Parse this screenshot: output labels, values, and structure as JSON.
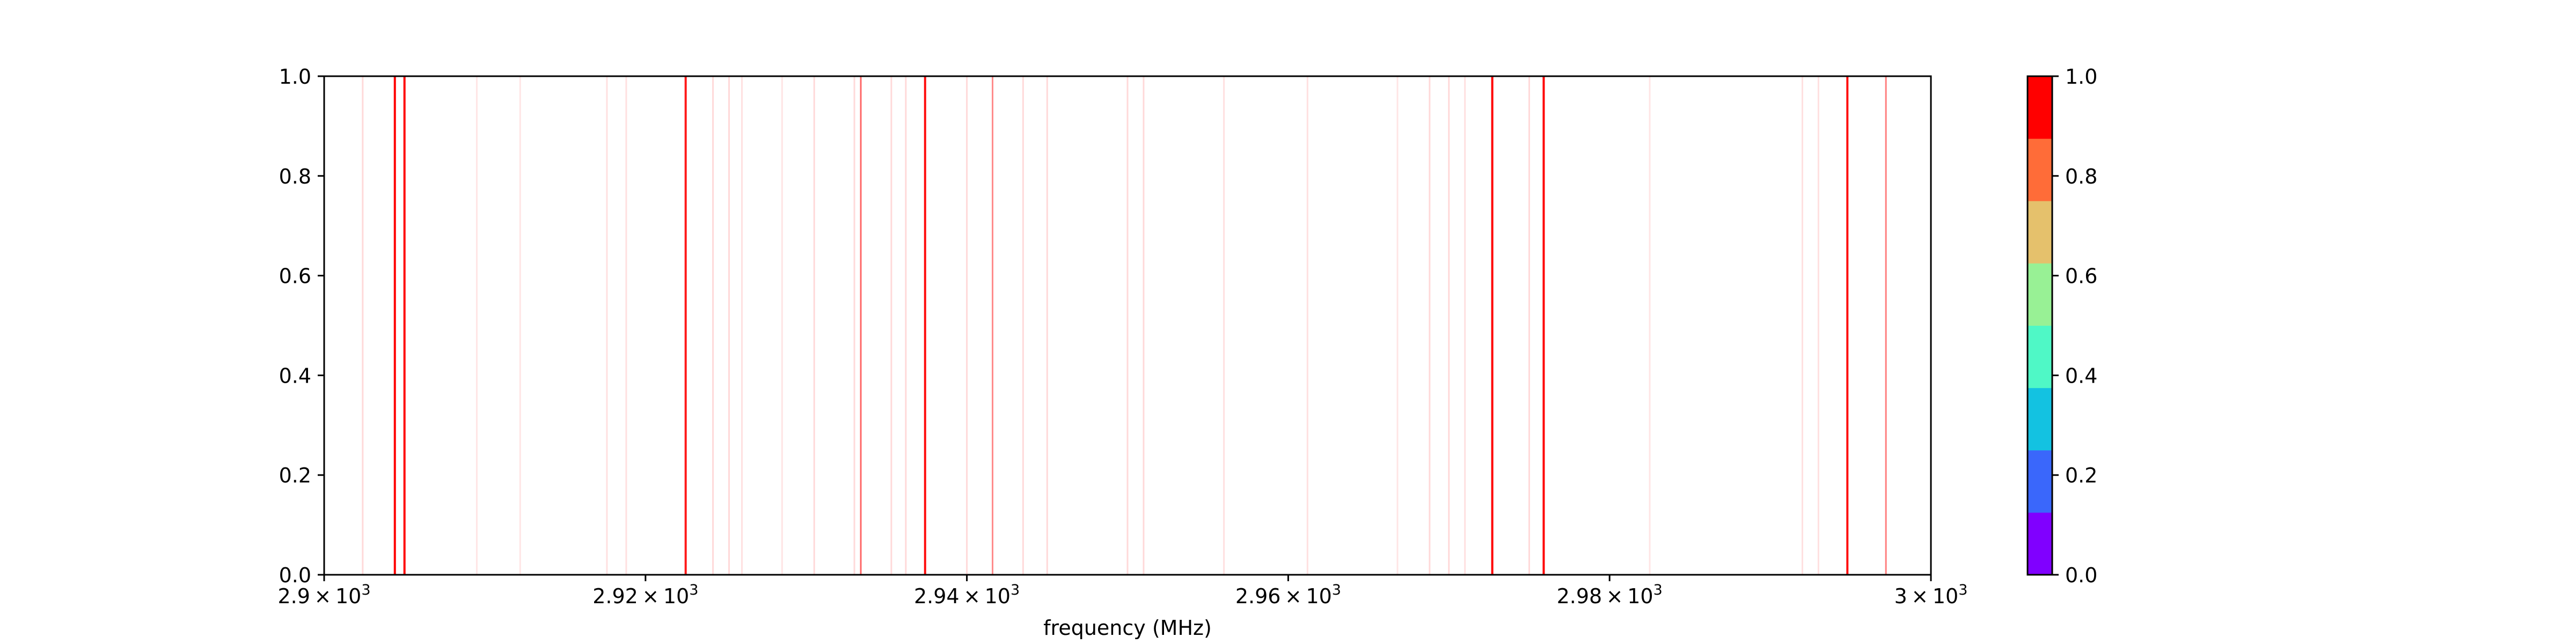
{
  "chart_data": {
    "type": "heatmap",
    "title": "",
    "xlabel": "frequency (MHz)",
    "ylabel": "",
    "xlim": [
      2900,
      3000
    ],
    "ylim": [
      0.0,
      1.0
    ],
    "grid": false,
    "x_ticks": [
      {
        "value": 2900,
        "mantissa": "2.9",
        "exponent": "3"
      },
      {
        "value": 2920,
        "mantissa": "2.92",
        "exponent": "3"
      },
      {
        "value": 2940,
        "mantissa": "2.94",
        "exponent": "3"
      },
      {
        "value": 2960,
        "mantissa": "2.96",
        "exponent": "3"
      },
      {
        "value": 2980,
        "mantissa": "2.98",
        "exponent": "3"
      },
      {
        "value": 3000,
        "mantissa": "3",
        "exponent": "3"
      }
    ],
    "x_tick_times": "×",
    "x_tick_base": "10",
    "y_ticks": [
      "0.0",
      "0.2",
      "0.4",
      "0.6",
      "0.8",
      "1.0"
    ],
    "lines": [
      {
        "x": 2902.4,
        "intensity": 0.15
      },
      {
        "x": 2904.4,
        "intensity": 1.0
      },
      {
        "x": 2905.0,
        "intensity": 1.0
      },
      {
        "x": 2909.5,
        "intensity": 0.1
      },
      {
        "x": 2912.2,
        "intensity": 0.1
      },
      {
        "x": 2917.6,
        "intensity": 0.12
      },
      {
        "x": 2918.8,
        "intensity": 0.12
      },
      {
        "x": 2922.5,
        "intensity": 0.9
      },
      {
        "x": 2924.2,
        "intensity": 0.15
      },
      {
        "x": 2925.2,
        "intensity": 0.15
      },
      {
        "x": 2926.0,
        "intensity": 0.12
      },
      {
        "x": 2928.5,
        "intensity": 0.1
      },
      {
        "x": 2930.5,
        "intensity": 0.15
      },
      {
        "x": 2933.0,
        "intensity": 0.15
      },
      {
        "x": 2933.4,
        "intensity": 0.6
      },
      {
        "x": 2935.3,
        "intensity": 0.15
      },
      {
        "x": 2936.2,
        "intensity": 0.15
      },
      {
        "x": 2937.4,
        "intensity": 0.95
      },
      {
        "x": 2940.0,
        "intensity": 0.15
      },
      {
        "x": 2941.6,
        "intensity": 0.45
      },
      {
        "x": 2943.5,
        "intensity": 0.15
      },
      {
        "x": 2945.0,
        "intensity": 0.15
      },
      {
        "x": 2950.0,
        "intensity": 0.15
      },
      {
        "x": 2951.0,
        "intensity": 0.15
      },
      {
        "x": 2956.0,
        "intensity": 0.12
      },
      {
        "x": 2961.2,
        "intensity": 0.12
      },
      {
        "x": 2966.8,
        "intensity": 0.1
      },
      {
        "x": 2968.8,
        "intensity": 0.15
      },
      {
        "x": 2970.0,
        "intensity": 0.15
      },
      {
        "x": 2971.0,
        "intensity": 0.12
      },
      {
        "x": 2972.7,
        "intensity": 1.0
      },
      {
        "x": 2975.0,
        "intensity": 0.15
      },
      {
        "x": 2975.9,
        "intensity": 1.0
      },
      {
        "x": 2982.5,
        "intensity": 0.1
      },
      {
        "x": 2992.0,
        "intensity": 0.12
      },
      {
        "x": 2993.0,
        "intensity": 0.12
      },
      {
        "x": 2994.8,
        "intensity": 0.95
      },
      {
        "x": 2997.2,
        "intensity": 0.5
      }
    ],
    "colorbar": {
      "vmin": 0.0,
      "vmax": 1.0,
      "ticks": [
        "0.0",
        "0.2",
        "0.4",
        "0.6",
        "0.8",
        "1.0"
      ],
      "colors": [
        "#8000ff",
        "#3a67fb",
        "#13c2e1",
        "#4ff8c6",
        "#98f195",
        "#e5c16c",
        "#ff6c38",
        "#ff0000"
      ]
    },
    "line_color": "#ff0000"
  }
}
